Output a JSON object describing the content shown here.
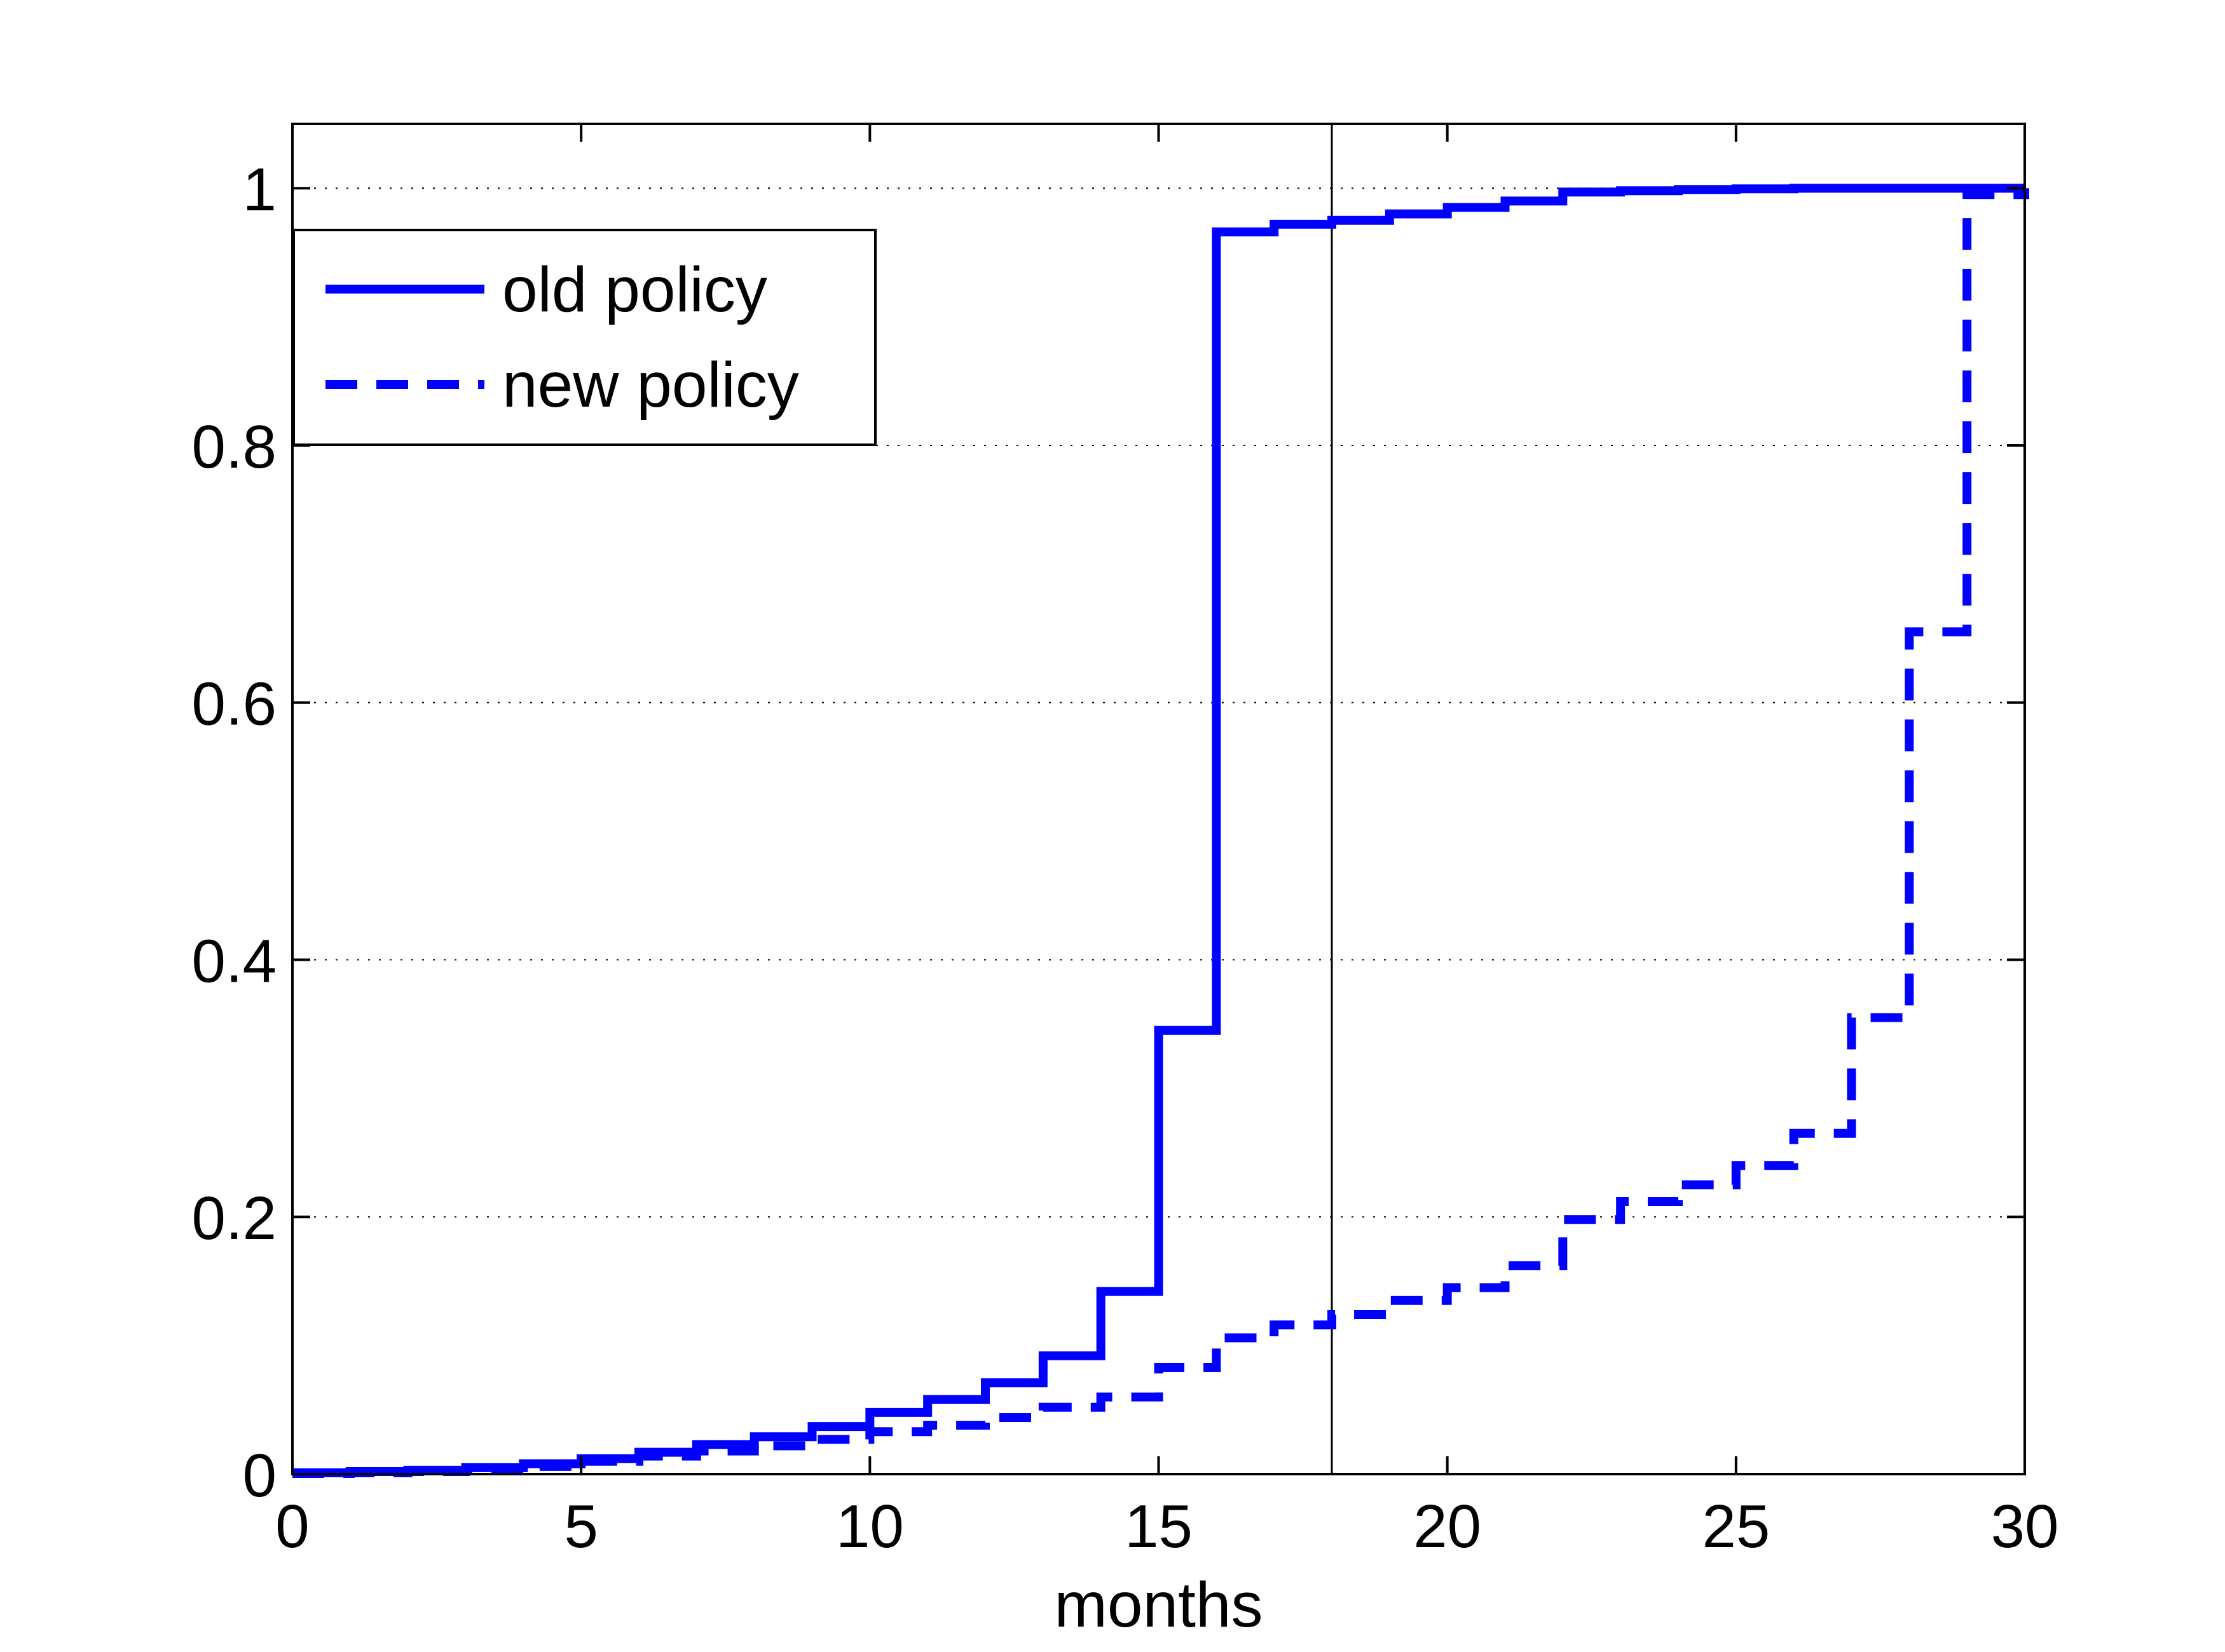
{
  "chart_data": {
    "type": "line",
    "step": true,
    "title": "",
    "xlabel": "months",
    "ylabel": "",
    "xlim": [
      0,
      30
    ],
    "ylim": [
      0,
      1.05
    ],
    "xticks": [
      0,
      5,
      10,
      15,
      20,
      25,
      30
    ],
    "xtick_labels": [
      "0",
      "5",
      "10",
      "15",
      "20",
      "25",
      "30"
    ],
    "yticks": [
      0,
      0.2,
      0.4,
      0.6,
      0.8,
      1
    ],
    "ytick_labels": [
      "0",
      "0.2",
      "0.4",
      "0.6",
      "0.8",
      "1"
    ],
    "grid": "horizontal dotted",
    "legend_position": "upper-left",
    "reference_line": {
      "x": 18
    },
    "series": [
      {
        "name": "old policy",
        "style": "solid",
        "color": "#0000ff",
        "x": [
          0,
          1,
          2,
          3,
          4,
          5,
          6,
          7,
          8,
          9,
          10,
          11,
          12,
          13,
          14,
          15,
          16,
          17,
          18,
          19,
          20,
          21,
          22,
          23,
          24,
          25,
          26,
          27,
          28,
          29,
          30
        ],
        "y": [
          0.001,
          0.002,
          0.003,
          0.005,
          0.008,
          0.012,
          0.017,
          0.023,
          0.029,
          0.037,
          0.048,
          0.058,
          0.071,
          0.092,
          0.142,
          0.345,
          0.966,
          0.972,
          0.975,
          0.98,
          0.985,
          0.99,
          0.997,
          0.998,
          0.999,
          0.9995,
          1.0,
          1.0,
          1.0,
          1.0,
          1.0
        ]
      },
      {
        "name": "new policy",
        "style": "dashed",
        "color": "#0000ff",
        "x": [
          0,
          1,
          2,
          3,
          4,
          5,
          6,
          7,
          8,
          9,
          10,
          11,
          12,
          13,
          14,
          15,
          16,
          17,
          18,
          19,
          20,
          21,
          22,
          23,
          24,
          25,
          26,
          27,
          28,
          29,
          30
        ],
        "y": [
          0.0005,
          0.001,
          0.002,
          0.004,
          0.006,
          0.01,
          0.014,
          0.018,
          0.022,
          0.027,
          0.033,
          0.038,
          0.044,
          0.052,
          0.06,
          0.083,
          0.106,
          0.116,
          0.124,
          0.135,
          0.145,
          0.162,
          0.198,
          0.212,
          0.225,
          0.24,
          0.265,
          0.355,
          0.655,
          0.995,
          1.0
        ]
      }
    ],
    "colors": {
      "series": "#0000ff",
      "axes": "#000000",
      "grid": "#000000"
    }
  }
}
